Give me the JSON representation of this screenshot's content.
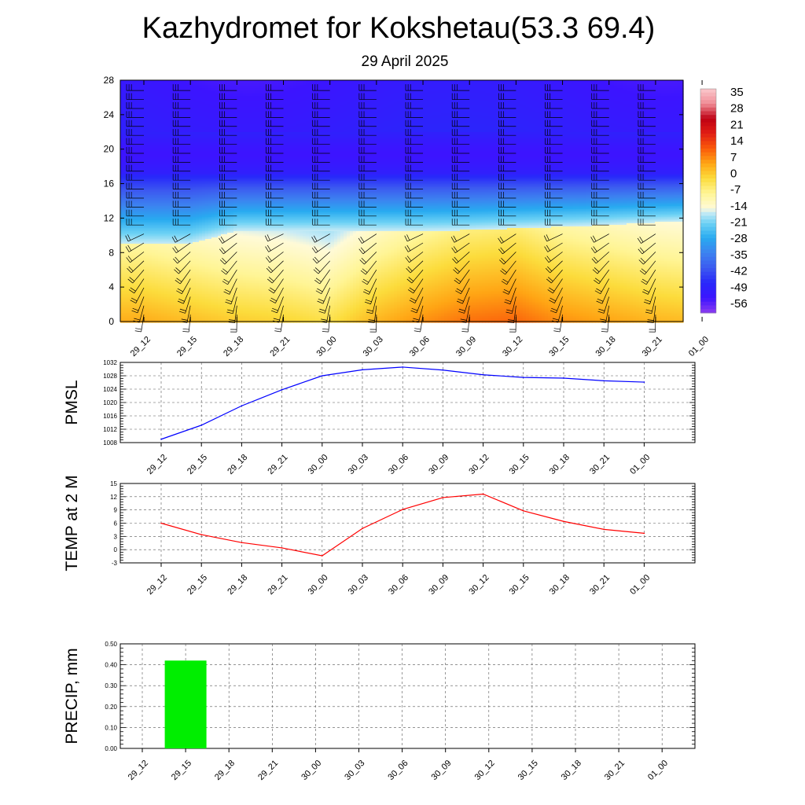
{
  "header": {
    "title": "Kazhydromet for Kokshetau(53.3 69.4)",
    "date": "29 April 2025"
  },
  "chart_data": [
    {
      "type": "heatmap",
      "name": "cross-section",
      "x_ticks": [
        "29_12",
        "29_15",
        "29_18",
        "29_21",
        "30_00",
        "30_03",
        "30_06",
        "30_09",
        "30_12",
        "30_15",
        "30_18",
        "30_21",
        "01_00"
      ],
      "y_ticks": [
        "0",
        "4",
        "8",
        "12",
        "16",
        "20",
        "24",
        "28"
      ],
      "ylim": [
        0,
        28
      ],
      "colorbar_labels": [
        "35",
        "28",
        "21",
        "14",
        "7",
        "0",
        "-7",
        "-14",
        "-21",
        "-28",
        "-35",
        "-42",
        "-49",
        "-56"
      ],
      "colorbar_range": [
        -63,
        42
      ],
      "inversion_height": [
        9,
        9,
        10.5,
        10.5,
        10.5,
        10.5,
        10.5,
        10.6,
        10.8,
        11,
        11.2,
        11.5,
        11.7
      ],
      "surface_temp": [
        6,
        4,
        2,
        1,
        -1,
        5,
        9,
        12,
        13,
        9,
        7,
        5,
        4
      ],
      "wind_barbs": "shown"
    },
    {
      "type": "line",
      "ylabel": "PMSL",
      "categories": [
        "29_12",
        "29_15",
        "29_18",
        "29_21",
        "30_00",
        "30_03",
        "30_06",
        "30_09",
        "30_12",
        "30_15",
        "30_18",
        "30_21",
        "01_00"
      ],
      "values": [
        1009,
        1013.2,
        1019,
        1023.8,
        1028,
        1029.8,
        1030.6,
        1029.7,
        1028.3,
        1027.5,
        1027.3,
        1026.5,
        1026.1
      ],
      "y_ticks": [
        "1008",
        "1012",
        "1016",
        "1020",
        "1024",
        "1028",
        "1032"
      ],
      "ylim": [
        1008,
        1032
      ],
      "color": "#0000ff"
    },
    {
      "type": "line",
      "ylabel": "TEMP at 2 M",
      "categories": [
        "29_12",
        "29_15",
        "29_18",
        "29_21",
        "30_00",
        "30_03",
        "30_06",
        "30_09",
        "30_12",
        "30_15",
        "30_18",
        "30_21",
        "01_00"
      ],
      "values": [
        6,
        3.4,
        1.6,
        0.4,
        -1.4,
        4.8,
        9.1,
        11.8,
        12.6,
        8.8,
        6.4,
        4.6,
        3.7
      ],
      "y_ticks": [
        "-3",
        "0",
        "3",
        "6",
        "9",
        "12",
        "15"
      ],
      "ylim": [
        -3,
        15
      ],
      "color": "#ff0000"
    },
    {
      "type": "bar",
      "ylabel": "PRECIP, mm",
      "categories": [
        "29_12",
        "29_15",
        "29_18",
        "29_21",
        "30_00",
        "30_03",
        "30_06",
        "30_09",
        "30_12",
        "30_15",
        "30_18",
        "30_21",
        "01_00"
      ],
      "values": [
        0,
        0.42,
        0,
        0,
        0,
        0,
        0,
        0,
        0,
        0,
        0,
        0,
        0
      ],
      "y_ticks": [
        "0.00",
        "0.10",
        "0.20",
        "0.30",
        "0.40",
        "0.50"
      ],
      "ylim": [
        0,
        0.5
      ],
      "color": "#00ee00"
    }
  ]
}
